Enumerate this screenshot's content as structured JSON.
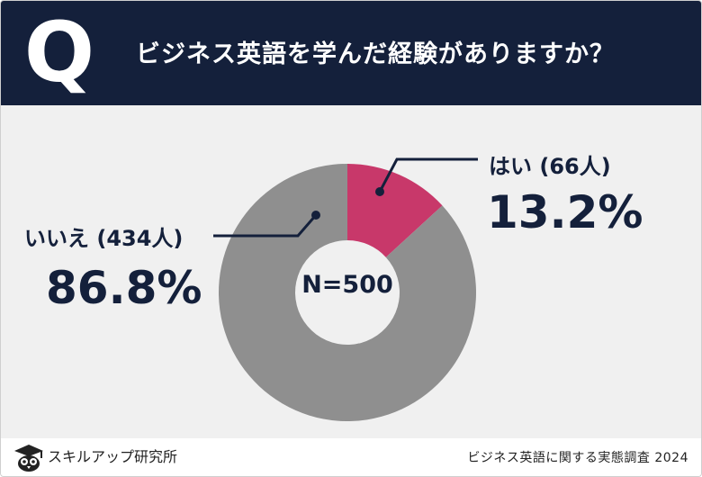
{
  "header": {
    "q_label": "Q",
    "question": "ビジネス英語を学んだ経験がありますか？"
  },
  "chart_data": {
    "type": "pie",
    "title": "ビジネス英語を学んだ経験がありますか？",
    "center_label": "N=500",
    "total": 500,
    "slices": [
      {
        "label": "はい (66人)",
        "count": 66,
        "percent_label": "13.2%",
        "value": 13.2,
        "color": "#c8386a"
      },
      {
        "label": "いいえ (434人)",
        "count": 434,
        "percent_label": "86.8%",
        "value": 86.8,
        "color": "#8f8f8f"
      }
    ]
  },
  "footer": {
    "brand": "スキルアップ研究所",
    "source": "ビジネス英語に関する実態調査 2024"
  },
  "colors": {
    "header_bg": "#14203b",
    "chart_bg": "#f0f0f0",
    "yes": "#c8386a",
    "no": "#8f8f8f",
    "text": "#14203b"
  },
  "icons": {
    "logo": "owl-graduation-cap-icon"
  }
}
